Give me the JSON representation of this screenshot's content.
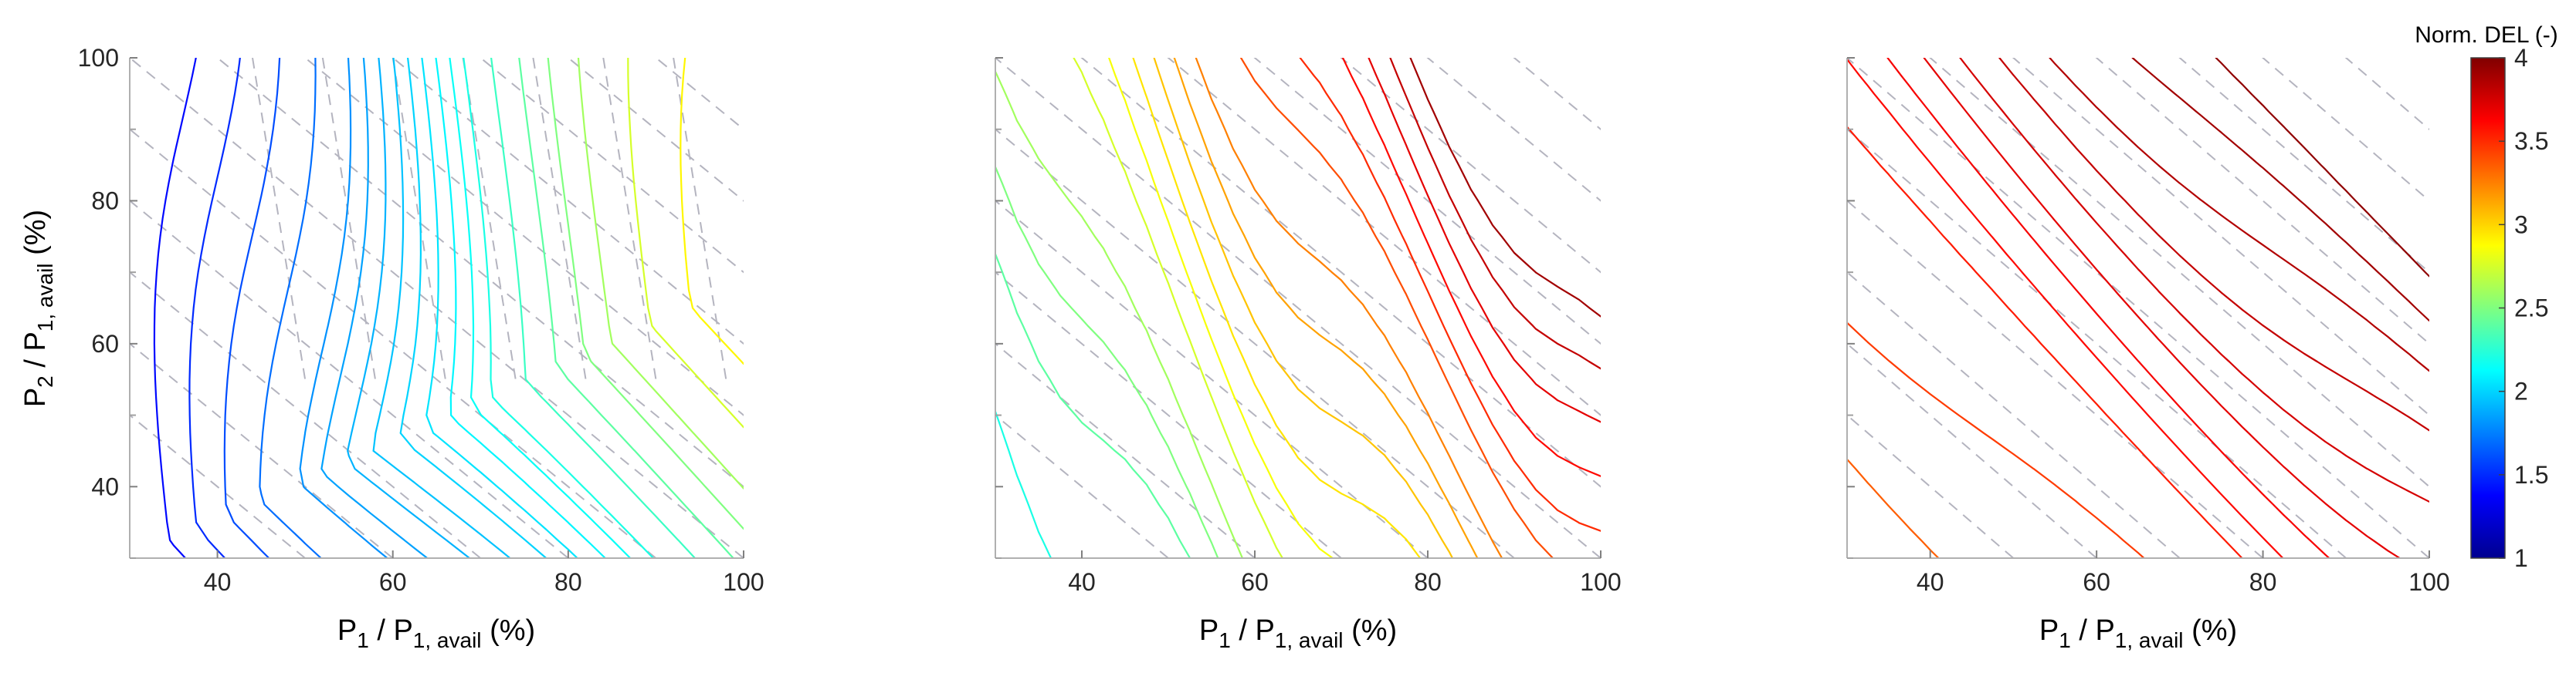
{
  "chart_data": {
    "type": "contour",
    "panels": [
      {
        "xlabel": {
          "main": "P",
          "sub": "1",
          "mid": " / P",
          "sub2": "1, avail",
          "tail": " (%)"
        },
        "ylabel": {
          "main": "P",
          "sub": "2",
          "mid": " / P",
          "sub2": "1, avail",
          "tail": " (%)"
        },
        "xlim": [
          30,
          100
        ],
        "ylim": [
          30,
          100
        ],
        "xticks": [
          "40",
          "60",
          "80",
          "100"
        ],
        "yticks": [
          "40",
          "60",
          "80",
          "100"
        ],
        "solid_levels": [
          1.4,
          1.5,
          1.6,
          1.7,
          1.8,
          1.85,
          1.9,
          1.95,
          2.0,
          2.05,
          2.1,
          2.15,
          2.2,
          2.3,
          2.4,
          2.5,
          2.6,
          2.75,
          2.9
        ]
      },
      {
        "xlabel": {
          "main": "P",
          "sub": "1",
          "mid": " / P",
          "sub2": "1, avail",
          "tail": " (%)"
        },
        "ylabel": null,
        "xlim": [
          30,
          100
        ],
        "ylim": [
          30,
          100
        ],
        "xticks": [
          "40",
          "60",
          "80",
          "100"
        ],
        "yticks": [],
        "solid_levels": [
          2.2,
          2.4,
          2.5,
          2.6,
          2.75,
          2.85,
          2.95,
          3.05,
          3.15,
          3.25,
          3.4,
          3.5,
          3.6,
          3.7,
          3.8,
          3.9
        ]
      },
      {
        "xlabel": {
          "main": "P",
          "sub": "1",
          "mid": " / P",
          "sub2": "1, avail",
          "tail": " (%)"
        },
        "ylabel": null,
        "xlim": [
          30,
          100
        ],
        "ylim": [
          30,
          100
        ],
        "xticks": [
          "40",
          "60",
          "80",
          "100"
        ],
        "yticks": [],
        "solid_levels": [
          3.35,
          3.45,
          3.55,
          3.6,
          3.65,
          3.7,
          3.75,
          3.8,
          3.85,
          3.9,
          3.95
        ]
      }
    ],
    "colorbar": {
      "title": "Norm. DEL (-)",
      "range": [
        1,
        4
      ],
      "ticks": [
        "1",
        "1.5",
        "2",
        "2.5",
        "3",
        "3.5",
        "4"
      ],
      "colormap": "jet"
    },
    "reference_lines": {
      "style": "dashed",
      "color": "#b4b4bf"
    }
  }
}
